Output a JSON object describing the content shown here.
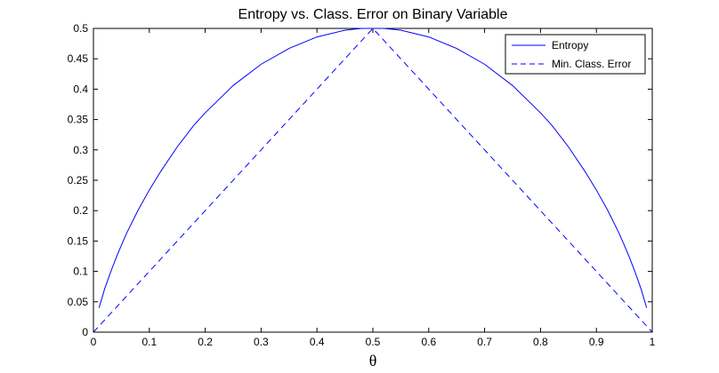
{
  "chart_data": {
    "type": "line",
    "title": "Entropy vs. Class. Error on Binary Variable",
    "xlabel": "θ",
    "ylabel": "",
    "xlim": [
      0,
      1
    ],
    "ylim": [
      0,
      0.5
    ],
    "x_ticks": [
      "0",
      "0.1",
      "0.2",
      "0.3",
      "0.4",
      "0.5",
      "0.6",
      "0.7",
      "0.8",
      "0.9",
      "1"
    ],
    "y_ticks": [
      "0",
      "0.05",
      "0.1",
      "0.15",
      "0.2",
      "0.25",
      "0.3",
      "0.35",
      "0.4",
      "0.45",
      "0.5"
    ],
    "grid": false,
    "legend_position": "top-right",
    "series": [
      {
        "name": "Entropy",
        "color": "#0000ff",
        "style": "solid",
        "x": [
          0.01,
          0.02,
          0.03,
          0.04,
          0.05,
          0.06,
          0.08,
          0.1,
          0.12,
          0.15,
          0.18,
          0.2,
          0.25,
          0.3,
          0.35,
          0.4,
          0.45,
          0.48,
          0.52,
          0.55,
          0.6,
          0.65,
          0.7,
          0.75,
          0.8,
          0.82,
          0.85,
          0.88,
          0.9,
          0.92,
          0.94,
          0.95,
          0.96,
          0.97,
          0.98,
          0.99
        ],
        "y": [
          0.04,
          0.071,
          0.097,
          0.121,
          0.143,
          0.164,
          0.201,
          0.234,
          0.264,
          0.305,
          0.341,
          0.361,
          0.406,
          0.441,
          0.467,
          0.486,
          0.497,
          0.5,
          0.5,
          0.497,
          0.486,
          0.467,
          0.441,
          0.406,
          0.361,
          0.341,
          0.305,
          0.264,
          0.234,
          0.201,
          0.164,
          0.143,
          0.121,
          0.097,
          0.071,
          0.04
        ]
      },
      {
        "name": "Min. Class. Error",
        "color": "#0000ff",
        "style": "dashed",
        "x": [
          0,
          0.5,
          1
        ],
        "y": [
          0,
          0.5,
          0
        ]
      }
    ]
  }
}
